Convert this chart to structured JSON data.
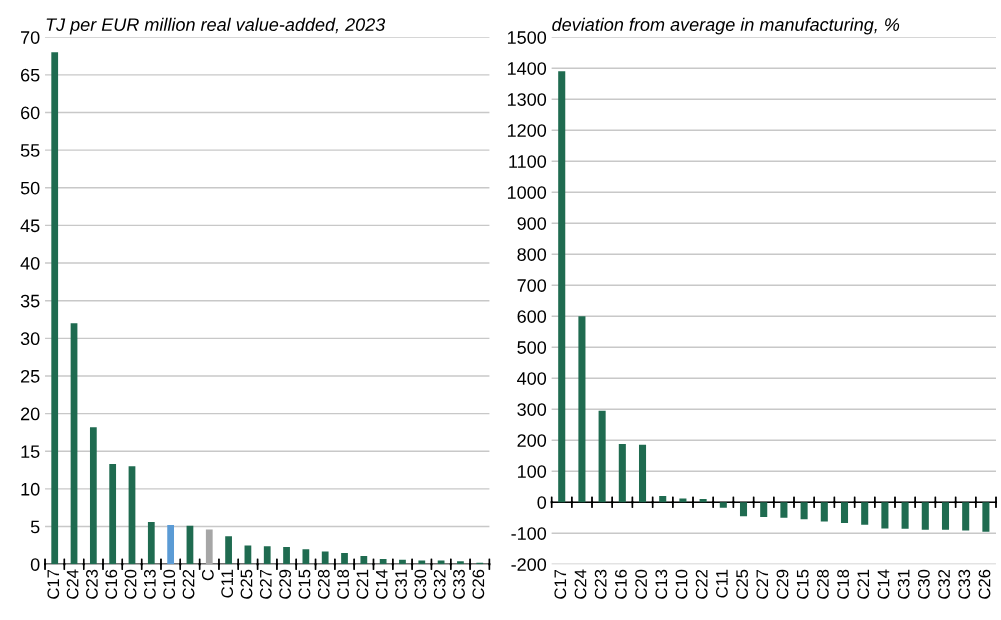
{
  "chart_data": [
    {
      "type": "bar",
      "title": "TJ per EUR million real value-added, 2023",
      "categories": [
        "C17",
        "C24",
        "C23",
        "C16",
        "C20",
        "C13",
        "C10",
        "C22",
        "C",
        "C11",
        "C25",
        "C27",
        "C29",
        "C15",
        "C28",
        "C18",
        "C21",
        "C14",
        "C31",
        "C30",
        "C32",
        "C33",
        "C26"
      ],
      "values": [
        68,
        32,
        18.2,
        13.3,
        13,
        5.6,
        5.2,
        5.1,
        4.6,
        3.7,
        2.5,
        2.4,
        2.3,
        2,
        1.7,
        1.5,
        1.1,
        0.7,
        0.6,
        0.5,
        0.5,
        0.4,
        0.2
      ],
      "colors": [
        "#1f6b50",
        "#1f6b50",
        "#1f6b50",
        "#1f6b50",
        "#1f6b50",
        "#1f6b50",
        "#5b9bd5",
        "#1f6b50",
        "#a6a6a6",
        "#1f6b50",
        "#1f6b50",
        "#1f6b50",
        "#1f6b50",
        "#1f6b50",
        "#1f6b50",
        "#1f6b50",
        "#1f6b50",
        "#1f6b50",
        "#1f6b50",
        "#1f6b50",
        "#1f6b50",
        "#1f6b50",
        "#1f6b50"
      ],
      "ylim": [
        0,
        70
      ],
      "yticks": [
        0,
        5,
        10,
        15,
        20,
        25,
        30,
        35,
        40,
        45,
        50,
        55,
        60,
        65,
        70
      ],
      "grid": "y"
    },
    {
      "type": "bar",
      "title": "deviation from average in manufacturing, %",
      "categories": [
        "C17",
        "C24",
        "C23",
        "C16",
        "C20",
        "C13",
        "C10",
        "C22",
        "C11",
        "C25",
        "C27",
        "C29",
        "C15",
        "C28",
        "C18",
        "C21",
        "C14",
        "C31",
        "C30",
        "C32",
        "C33",
        "C26"
      ],
      "values": [
        1390,
        600,
        295,
        188,
        185,
        20,
        12,
        10,
        -18,
        -45,
        -48,
        -50,
        -55,
        -62,
        -67,
        -73,
        -85,
        -86,
        -89,
        -89,
        -91,
        -95
      ],
      "color": "#1f6b50",
      "ylim": [
        -200,
        1500
      ],
      "yticks": [
        -200,
        -100,
        0,
        100,
        200,
        300,
        400,
        500,
        600,
        700,
        800,
        900,
        1000,
        1100,
        1200,
        1300,
        1400,
        1500
      ],
      "grid": "y"
    }
  ]
}
